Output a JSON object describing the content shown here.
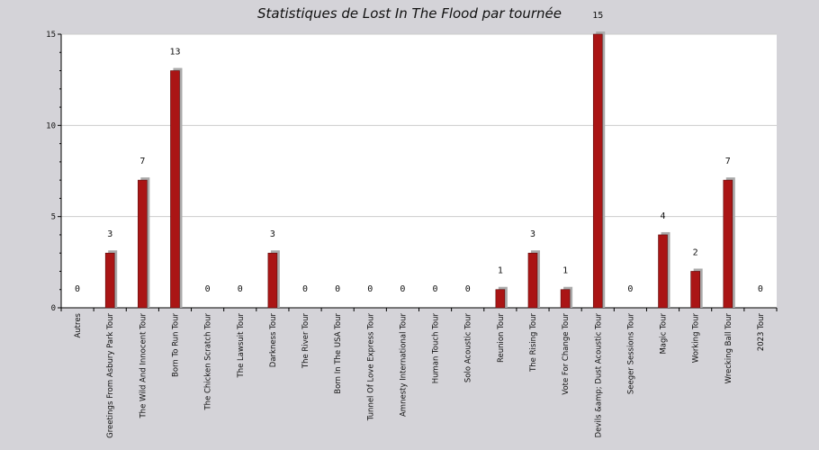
{
  "chart_data": {
    "type": "bar",
    "title": "Statistiques de Lost In The Flood par tournée",
    "xlabel": "",
    "ylabel": "",
    "ylim": [
      0,
      15
    ],
    "yticks": [
      0,
      5,
      10,
      15
    ],
    "grid": true,
    "categories": [
      "Autres",
      "Greetings From Asbury Park Tour",
      "The Wild And Innocent Tour",
      "Born To Run Tour",
      "The Chicken Scratch Tour",
      "The Lawsuit Tour",
      "Darkness Tour",
      "The River Tour",
      "Born In The USA Tour",
      "Tunnel Of Love Express Tour",
      "Amnesty International Tour",
      "Human Touch Tour",
      "Solo Acoustic Tour",
      "Reunion Tour",
      "The Rising Tour",
      "Vote For Change Tour",
      "Devils &amp; Dust Acoustic Tour",
      "Seeger Sessions Tour",
      "Magic Tour",
      "Working Tour",
      "Wrecking Ball Tour",
      "2023 Tour"
    ],
    "values": [
      0,
      3,
      7,
      13,
      0,
      0,
      3,
      0,
      0,
      0,
      0,
      0,
      0,
      1,
      3,
      1,
      15,
      0,
      4,
      2,
      7,
      0
    ],
    "colors": {
      "bar": "#aa1515",
      "bar_shadow": "#aaaaaa",
      "plot_bg": "#ffffff",
      "page_bg": "#d4d3d8",
      "grid": "#cccccc",
      "axis": "#000000"
    }
  }
}
